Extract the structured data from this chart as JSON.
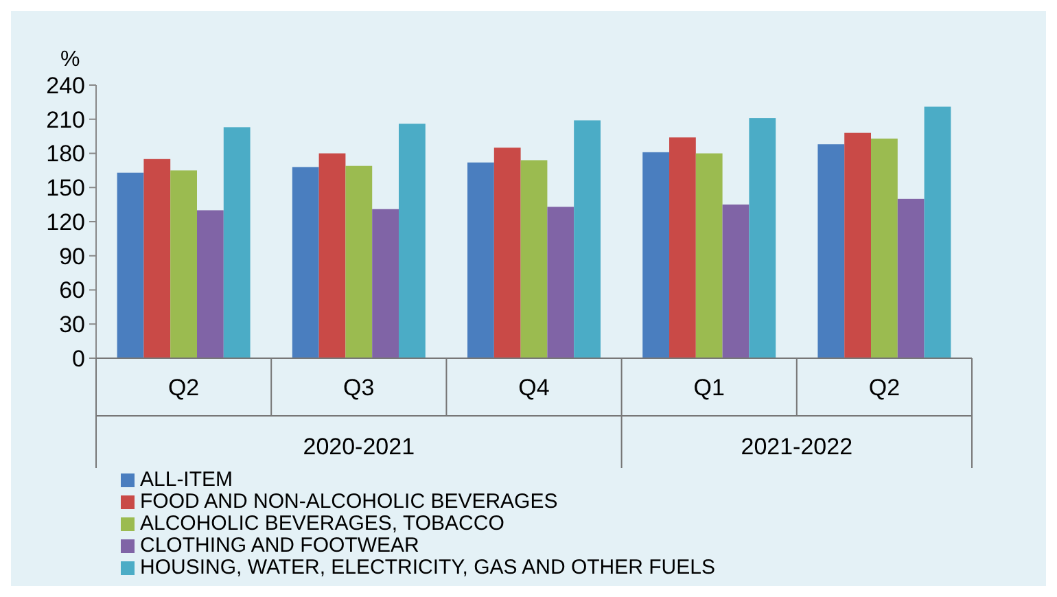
{
  "chart_data": {
    "type": "bar",
    "ylabel": "%",
    "categories": [
      "Q2",
      "Q3",
      "Q4",
      "Q1",
      "Q2"
    ],
    "annotations": [
      "2020-2021",
      "2021-2022"
    ],
    "series": [
      {
        "name": "ALL-ITEM",
        "color": "#4a7ebf",
        "values": [
          163,
          168,
          172,
          181,
          188
        ]
      },
      {
        "name": "FOOD AND NON-ALCOHOLIC BEVERAGES",
        "color": "#c94a47",
        "values": [
          175,
          180,
          185,
          194,
          198
        ]
      },
      {
        "name": "ALCOHOLIC BEVERAGES, TOBACCO",
        "color": "#9bbb50",
        "values": [
          165,
          169,
          174,
          180,
          193
        ]
      },
      {
        "name": "CLOTHING AND FOOTWEAR",
        "color": "#8064a6",
        "values": [
          130,
          131,
          133,
          135,
          140
        ]
      },
      {
        "name": "HOUSING, WATER, ELECTRICITY, GAS  AND OTHER FUELS",
        "color": "#4bacc6",
        "values": [
          203,
          206,
          209,
          211,
          221
        ]
      }
    ],
    "ylim": [
      0,
      240
    ],
    "yticks": [
      0,
      30,
      60,
      90,
      120,
      150,
      180,
      210,
      240
    ],
    "legend": "bottom"
  }
}
